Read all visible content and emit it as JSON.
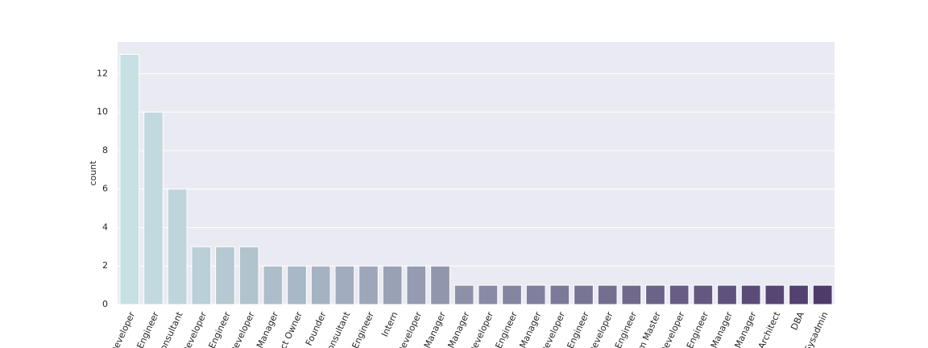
{
  "chart_data": {
    "type": "bar",
    "ylabel": "count",
    "categories": [
      "Developer",
      "Engineer",
      "Consultant",
      "Developer",
      "Engineer",
      "Developer",
      "Manager",
      "ct Owner",
      "Founder",
      "Consultant",
      "Engineer",
      "Intern",
      "Developer",
      "Manager",
      "Manager",
      "Developer",
      "Engineer",
      "Manager",
      "Developer",
      "Engineer",
      "Developer",
      "Engineer",
      "m Master",
      "Developer",
      "Engineer",
      "Manager",
      "Manager",
      "Architect",
      "DBA",
      "Sysadmin"
    ],
    "values": [
      13,
      10,
      6,
      3,
      3,
      3,
      2,
      2,
      2,
      2,
      2,
      2,
      2,
      2,
      1,
      1,
      1,
      1,
      1,
      1,
      1,
      1,
      1,
      1,
      1,
      1,
      1,
      1,
      1,
      1
    ],
    "palette": [
      "#c6e0e3",
      "#4f3b6b"
    ],
    "ylim": [
      0,
      13.65
    ],
    "yticks": [
      0,
      2,
      4,
      6,
      8,
      10,
      12
    ],
    "grid": true
  }
}
